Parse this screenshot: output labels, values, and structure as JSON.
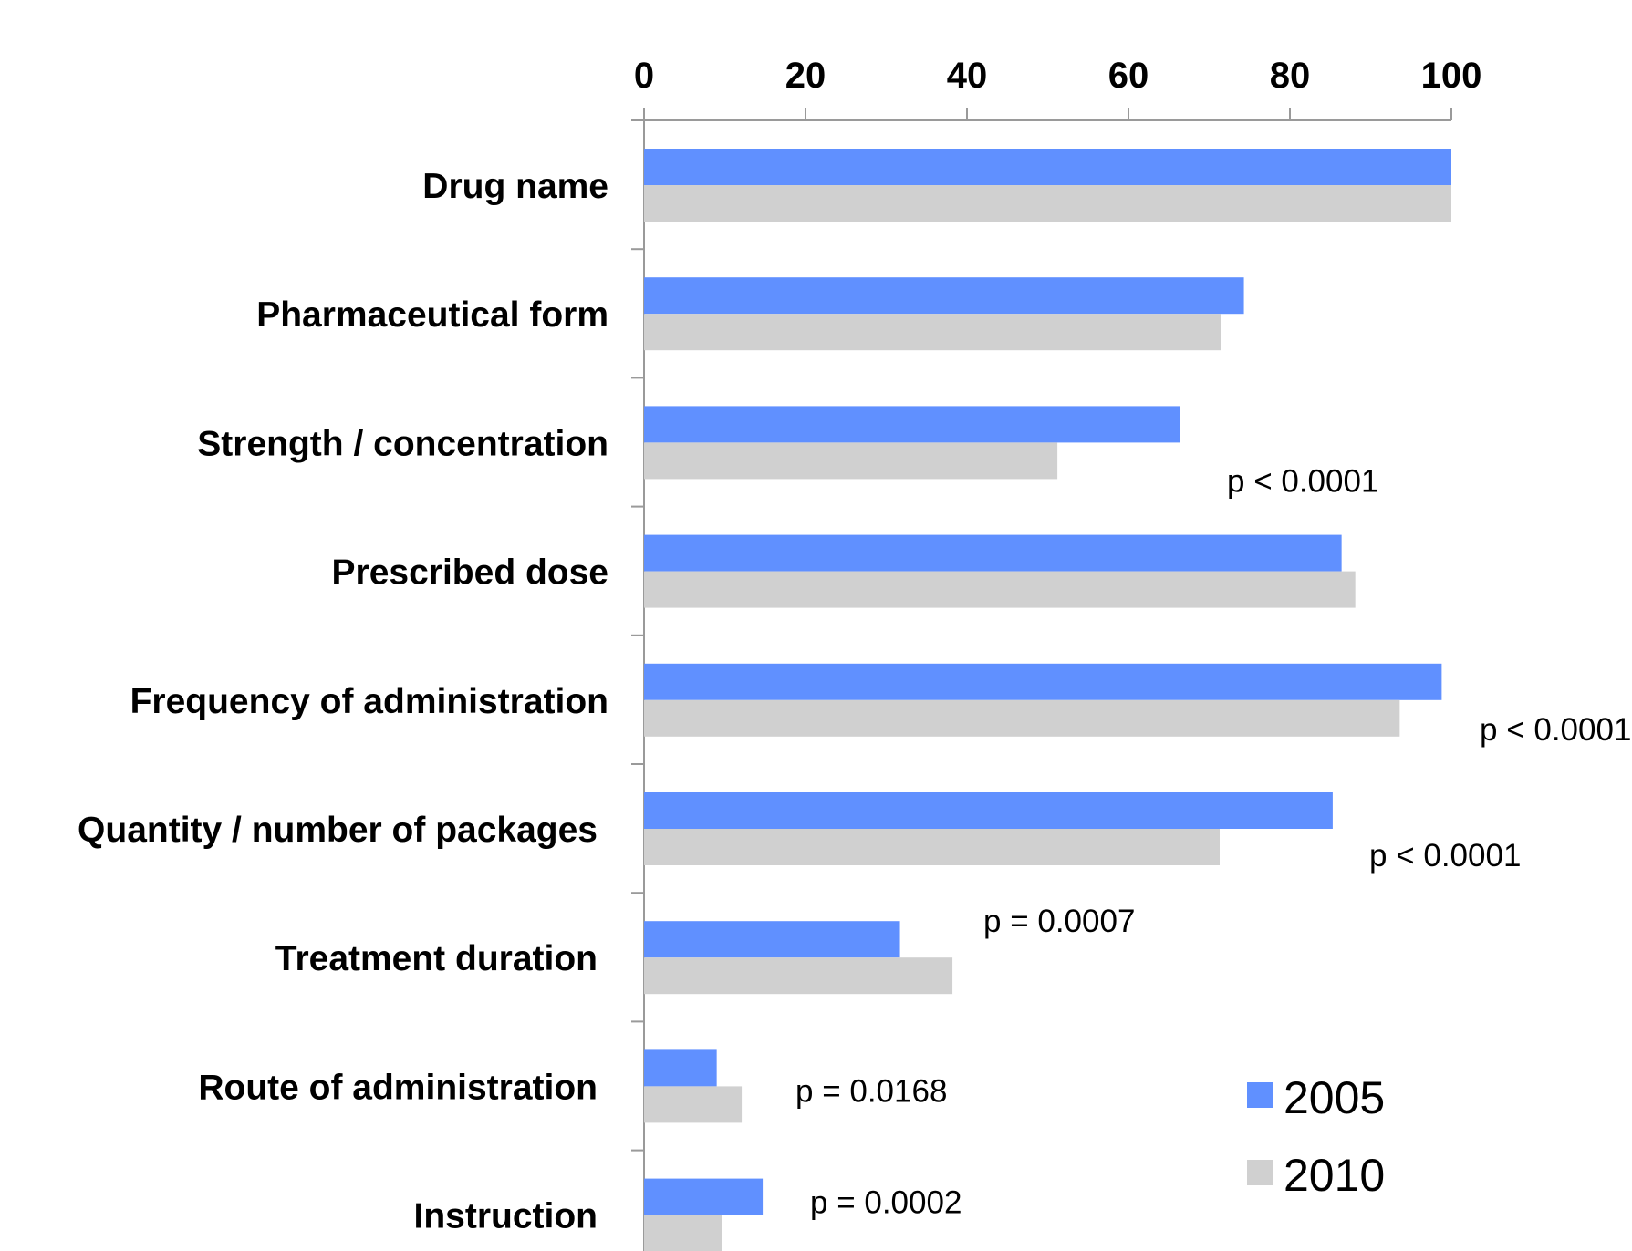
{
  "chart_data": {
    "type": "bar",
    "orientation": "horizontal",
    "categories": [
      "Drug name",
      "Pharmaceutical form",
      "Strength / concentration",
      "Prescribed dose",
      "Frequency of administration",
      "Quantity / number of packages",
      "Treatment duration",
      "Route of administration",
      "Instruction"
    ],
    "series": [
      {
        "name": "2005",
        "color": "#6090FF",
        "values": [
          100,
          74.3,
          66.4,
          86.4,
          98.8,
          85.3,
          31.7,
          9.0,
          14.7
        ]
      },
      {
        "name": "2010",
        "color": "#D0D0D0",
        "values": [
          100,
          71.5,
          51.2,
          88.1,
          93.6,
          71.3,
          38.2,
          12.1,
          9.7
        ]
      }
    ],
    "annotations": [
      {
        "category": "Strength / concentration",
        "text": "p < 0.0001"
      },
      {
        "category": "Frequency of administration",
        "text": "p < 0.0001"
      },
      {
        "category": "Quantity / number of packages",
        "text": "p < 0.0001"
      },
      {
        "category": "Treatment duration",
        "text": "p = 0.0007"
      },
      {
        "category": "Route of administration",
        "text": "p = 0.0168"
      },
      {
        "category": "Instruction",
        "text": "p = 0.0002"
      }
    ],
    "xaxis": {
      "position": "top",
      "ticks": [
        0,
        20,
        40,
        60,
        80,
        100
      ],
      "range": [
        0,
        100
      ]
    },
    "title": "",
    "xlabel": "",
    "ylabel": "",
    "grid": false,
    "legend": {
      "position": "bottom-right",
      "entries": [
        "2005",
        "2010"
      ]
    }
  }
}
